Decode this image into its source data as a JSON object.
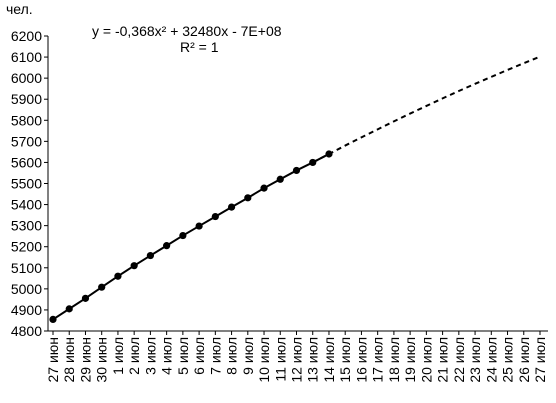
{
  "chart_data": {
    "type": "line",
    "y_label": "чел.",
    "annotations": [
      "y = -0,368x² + 32480x - 7E+08",
      "R² = 1"
    ],
    "categories": [
      "27 июн",
      "28 июн",
      "29 июн",
      "30 июн",
      "1 июл",
      "2 июл",
      "3 июл",
      "4 июл",
      "5 июл",
      "6 июл",
      "7 июл",
      "8 июл",
      "9 июл",
      "10 июл",
      "11 июл",
      "12 июл",
      "13 июл",
      "14 июл",
      "15 июл",
      "16 июл",
      "17 июл",
      "18 июл",
      "19 июл",
      "20 июл",
      "21 июл",
      "22 июл",
      "23 июл",
      "24 июл",
      "25 июл",
      "26 июл",
      "27 июл"
    ],
    "series": [
      {
        "color": "#000000",
        "style": "solid",
        "markers": true,
        "values": [
          4855,
          4905,
          4955,
          5008,
          5060,
          5110,
          5158,
          5205,
          5253,
          5298,
          5343,
          5388,
          5432,
          5478,
          5520,
          5562,
          5600,
          5640,
          null,
          null,
          null,
          null,
          null,
          null,
          null,
          null,
          null,
          null,
          null,
          null,
          null
        ]
      },
      {
        "color": "#000000",
        "style": "dashed",
        "markers": false,
        "values": [
          null,
          null,
          null,
          null,
          null,
          null,
          null,
          null,
          null,
          null,
          null,
          null,
          null,
          null,
          null,
          null,
          5600,
          5640,
          5680,
          5719,
          5757,
          5795,
          5832,
          5868,
          5904,
          5939,
          5973,
          6006,
          6039,
          6071,
          6102
        ]
      }
    ],
    "ylim": [
      4800,
      6200
    ],
    "yticks": [
      4800,
      4900,
      5000,
      5100,
      5200,
      5300,
      5400,
      5500,
      5600,
      5700,
      5800,
      5900,
      6000,
      6100,
      6200
    ],
    "grid": false
  }
}
